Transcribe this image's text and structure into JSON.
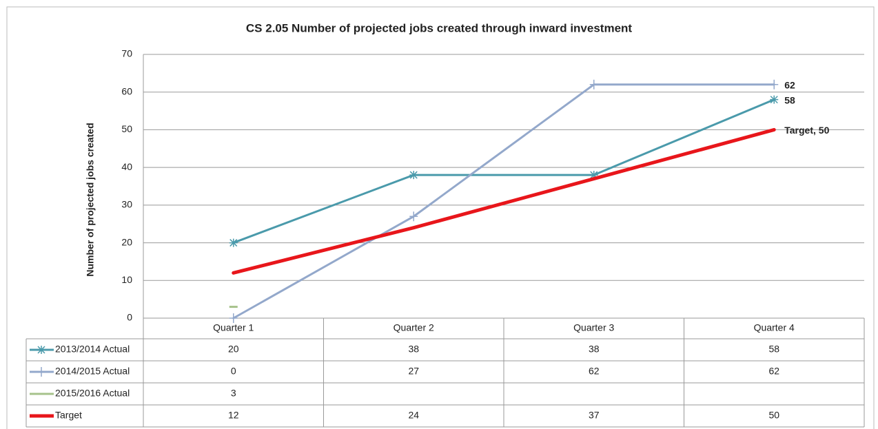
{
  "chart_data": {
    "type": "line",
    "title": "CS 2.05 Number of projected jobs created through inward investment",
    "y_label": "Number of projected jobs created",
    "categories": [
      "Quarter 1",
      "Quarter 2",
      "Quarter 3",
      "Quarter 4"
    ],
    "ylim": [
      0,
      70
    ],
    "yticks": [
      0,
      10,
      20,
      30,
      40,
      50,
      60,
      70
    ],
    "grid": true,
    "series": [
      {
        "name": "2013/2014 Actual",
        "color": "#4a9aab",
        "marker": "asterisk",
        "values": [
          20,
          38,
          38,
          58
        ],
        "value_labels": [
          null,
          null,
          null,
          "58"
        ]
      },
      {
        "name": "2014/2015 Actual",
        "color": "#93a8cb",
        "marker": "plus",
        "values": [
          0,
          27,
          62,
          62
        ],
        "value_labels": [
          null,
          null,
          null,
          "62"
        ]
      },
      {
        "name": "2015/2016 Actual",
        "color": "#a6c28b",
        "marker": "dash",
        "values": [
          3,
          null,
          null,
          null
        ]
      },
      {
        "name": "Target",
        "color": "#e8161b",
        "marker": "none",
        "values": [
          12,
          24,
          37,
          50
        ],
        "value_labels": [
          null,
          null,
          null,
          "Target, 50"
        ]
      }
    ]
  }
}
